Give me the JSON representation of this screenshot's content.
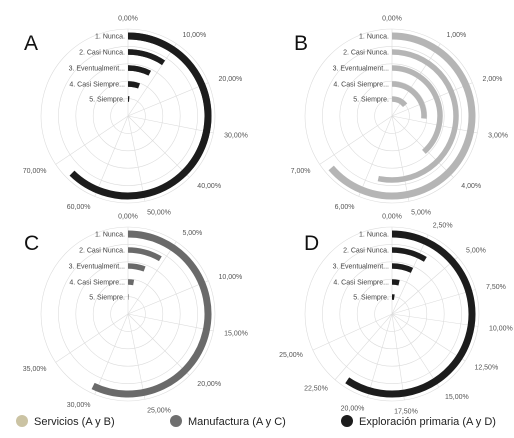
{
  "colors": {
    "servicios": "#b5b5b5",
    "manufactura": "#6a6a6a",
    "exploracion": "#1c1c1c",
    "grid": "#dcdcdc",
    "legend_servicios": "#cbc3a3",
    "legend_manufactura": "#6f6f6f",
    "legend_exploracion": "#1c1c1c"
  },
  "legend": [
    {
      "label": "Servicios (A y B)",
      "color_key": "legend_servicios"
    },
    {
      "label": "Manufactura (A y C)",
      "color_key": "legend_manufactura"
    },
    {
      "label": "Exploración primaria (A y D)",
      "color_key": "legend_exploracion"
    }
  ],
  "chart_data": [
    {
      "type": "radial_bar",
      "panel": "A",
      "categories": [
        "1. Nunca.",
        "2. Casi Nunca.",
        "3. Eventualment...",
        "4. Casi Siempre...",
        "5. Siempre."
      ],
      "angle_ticks": [
        "0,00%",
        "10,00%",
        "20,00%",
        "30,00%",
        "40,00%",
        "50,00%",
        "60,00%",
        "70,00%"
      ],
      "axis_max": 80,
      "series": [
        {
          "color_key": "servicios",
          "values": [
            5.5,
            4.5,
            3.5,
            2.0,
            0.5
          ]
        },
        {
          "color_key": "manufactura",
          "values": [
            38.0,
            8.0,
            6.0,
            4.5,
            1.0
          ]
        },
        {
          "color_key": "exploracion",
          "values": [
            66.5,
            10.0,
            8.0,
            6.0,
            1.2
          ]
        }
      ]
    },
    {
      "type": "radial_bar",
      "panel": "B",
      "categories": [
        "1. Nunca.",
        "2. Casi Nunca.",
        "3. Eventualment...",
        "4. Casi Siempre...",
        "5. Siempre."
      ],
      "angle_ticks": [
        "0,00%",
        "1,00%",
        "2,00%",
        "3,00%",
        "4,00%",
        "5,00%",
        "6,00%",
        "7,00%"
      ],
      "axis_max": 8,
      "series": [
        {
          "color_key": "servicios",
          "values": [
            6.8,
            5.7,
            4.1,
            2.8,
            1.5
          ]
        }
      ]
    },
    {
      "type": "radial_bar",
      "panel": "C",
      "categories": [
        "1. Nunca.",
        "2. Casi Nunca.",
        "3. Eventualment...",
        "4. Casi Siempre...",
        "5. Siempre."
      ],
      "angle_ticks": [
        "0,00%",
        "5,00%",
        "10,00%",
        "15,00%",
        "20,00%",
        "25,00%",
        "30,00%",
        "35,00%"
      ],
      "axis_max": 40,
      "series": [
        {
          "color_key": "manufactura",
          "values": [
            30.5,
            4.5,
            3.0,
            1.5,
            0.3
          ]
        }
      ]
    },
    {
      "type": "radial_bar",
      "panel": "D",
      "categories": [
        "1. Nunca.",
        "2. Casi Nunca.",
        "3. Eventualment...",
        "4. Casi Siempre...",
        "5. Siempre."
      ],
      "angle_ticks": [
        "0,00%",
        "2,50%",
        "5,00%",
        "7,50%",
        "10,00%",
        "12,50%",
        "15,00%",
        "17,50%",
        "20,00%",
        "22,50%",
        "25,00%"
      ],
      "axis_max": 27.5,
      "series": [
        {
          "color_key": "exploracion",
          "values": [
            21.8,
            3.2,
            2.5,
            1.3,
            0.8
          ]
        }
      ]
    }
  ]
}
